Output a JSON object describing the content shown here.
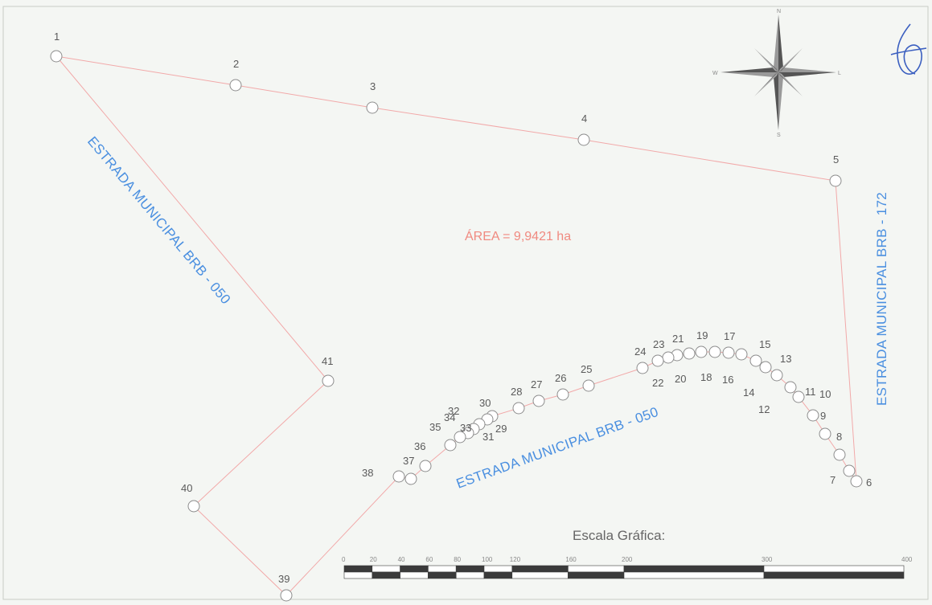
{
  "area_label": "ÁREA = 9,9421 ha",
  "roads": {
    "road_west": "ESTRADA MUNICIPAL BRB - 050",
    "road_south": "ESTRADA MUNICIPAL BRB - 050",
    "road_east": "ESTRADA MUNICIPAL BRB - 172"
  },
  "compass": {
    "n": "N",
    "s": "S",
    "e": "L",
    "w": "W"
  },
  "scale": {
    "title": "Escala Gráfica:",
    "ticks": [
      "0",
      "20",
      "40",
      "60",
      "80",
      "100",
      "120",
      "160",
      "200",
      "300",
      "400"
    ]
  },
  "colors": {
    "boundary": "#f2a9a9",
    "road_text": "#4a8fe0",
    "area_text": "#f08a80"
  },
  "vertices": [
    "1",
    "2",
    "3",
    "4",
    "5",
    "6",
    "7",
    "8",
    "9",
    "10",
    "11",
    "12",
    "13",
    "14",
    "15",
    "16",
    "17",
    "18",
    "19",
    "20",
    "21",
    "22",
    "23",
    "24",
    "25",
    "26",
    "27",
    "28",
    "29",
    "30",
    "31",
    "32",
    "33",
    "34",
    "35",
    "36",
    "37",
    "38",
    "39",
    "40",
    "41"
  ]
}
